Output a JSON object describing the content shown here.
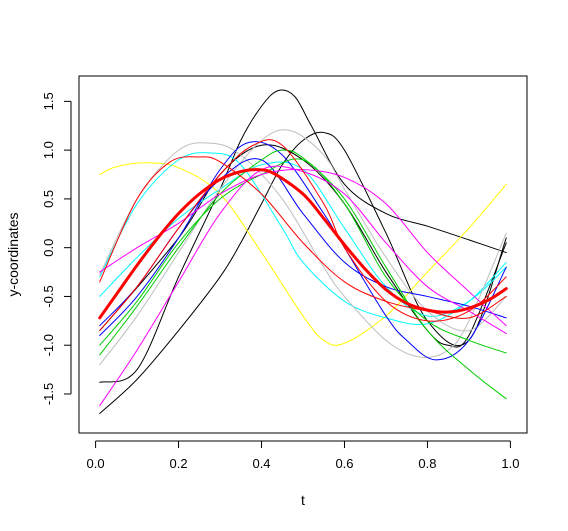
{
  "chart_data": {
    "type": "line",
    "title": "",
    "xlabel": "t",
    "ylabel": "y-coordinates",
    "xlim": [
      -0.04,
      1.04
    ],
    "ylim": [
      -1.9,
      1.76
    ],
    "xticks": [
      0.0,
      0.2,
      0.4,
      0.6,
      0.8,
      1.0
    ],
    "xtick_labels": [
      "0.0",
      "0.2",
      "0.4",
      "0.6",
      "0.8",
      "1.0"
    ],
    "yticks": [
      -1.5,
      -1.0,
      -0.5,
      0.0,
      0.5,
      1.0,
      1.5
    ],
    "ytick_labels": [
      "-1.5",
      "-1.0",
      "-0.5",
      "0.0",
      "0.5",
      "1.0",
      "1.5"
    ],
    "grid": false,
    "legend": "none",
    "series": [
      {
        "color": "#000000",
        "width": 1,
        "x": [
          0.01,
          0.1,
          0.2,
          0.3,
          0.35,
          0.4,
          0.45,
          0.5,
          0.55,
          0.6,
          0.7,
          0.8,
          0.9,
          0.99
        ],
        "y": [
          -1.7,
          -1.35,
          -0.85,
          -0.3,
          0.05,
          0.45,
          0.85,
          1.1,
          1.18,
          1.0,
          0.15,
          -0.75,
          -0.95,
          0.1
        ]
      },
      {
        "color": "#000000",
        "width": 1,
        "x": [
          0.01,
          0.1,
          0.2,
          0.3,
          0.35,
          0.4,
          0.44,
          0.48,
          0.52,
          0.6,
          0.7,
          0.8,
          0.9,
          0.99
        ],
        "y": [
          -1.38,
          -1.25,
          -0.3,
          0.6,
          1.1,
          1.45,
          1.61,
          1.55,
          1.25,
          0.65,
          0.35,
          0.22,
          0.08,
          -0.05
        ]
      },
      {
        "color": "#000000",
        "width": 1,
        "x": [
          0.01,
          0.2,
          0.3,
          0.4,
          0.5,
          0.6,
          0.7,
          0.8,
          0.85,
          0.9,
          0.99
        ],
        "y": [
          -0.85,
          0.1,
          0.75,
          1.05,
          0.9,
          0.45,
          -0.25,
          -0.85,
          -1.0,
          -0.9,
          0.05
        ]
      },
      {
        "color": "#ffff00",
        "width": 1,
        "x": [
          0.01,
          0.05,
          0.12,
          0.2,
          0.3,
          0.4,
          0.5,
          0.55,
          0.6,
          0.7,
          0.8,
          0.9,
          0.99
        ],
        "y": [
          0.75,
          0.83,
          0.87,
          0.82,
          0.55,
          -0.05,
          -0.7,
          -0.95,
          -0.98,
          -0.7,
          -0.25,
          0.2,
          0.65
        ]
      },
      {
        "color": "#00ffff",
        "width": 1,
        "x": [
          0.01,
          0.1,
          0.2,
          0.28,
          0.35,
          0.45,
          0.5,
          0.6,
          0.7,
          0.8,
          0.9,
          0.99
        ],
        "y": [
          -0.3,
          0.45,
          0.9,
          0.97,
          0.85,
          0.2,
          -0.15,
          -0.55,
          -0.72,
          -0.78,
          -0.55,
          -0.15
        ]
      },
      {
        "color": "#00ffff",
        "width": 1,
        "x": [
          0.01,
          0.1,
          0.2,
          0.3,
          0.4,
          0.5,
          0.6,
          0.7,
          0.8,
          0.9,
          0.99
        ],
        "y": [
          -0.5,
          -0.1,
          0.3,
          0.6,
          0.85,
          0.8,
          0.2,
          -0.4,
          -0.7,
          -0.55,
          -0.2
        ]
      },
      {
        "color": "#bebebe",
        "width": 1,
        "x": [
          0.01,
          0.1,
          0.2,
          0.28,
          0.35,
          0.45,
          0.55,
          0.6,
          0.7,
          0.78,
          0.85,
          0.9,
          0.99
        ],
        "y": [
          -0.28,
          0.5,
          1.0,
          1.07,
          0.95,
          0.5,
          -0.2,
          -0.5,
          -0.95,
          -1.12,
          -1.05,
          -0.75,
          0.15
        ]
      },
      {
        "color": "#bebebe",
        "width": 1,
        "x": [
          0.01,
          0.1,
          0.2,
          0.3,
          0.4,
          0.47,
          0.55,
          0.6,
          0.7,
          0.8,
          0.9,
          0.99
        ],
        "y": [
          -1.2,
          -0.7,
          -0.05,
          0.6,
          1.1,
          1.2,
          0.95,
          0.6,
          -0.1,
          -0.65,
          -0.85,
          -0.5
        ]
      },
      {
        "color": "#0000ff",
        "width": 1,
        "x": [
          0.01,
          0.1,
          0.2,
          0.3,
          0.37,
          0.45,
          0.55,
          0.6,
          0.7,
          0.75,
          0.82,
          0.9,
          0.99
        ],
        "y": [
          -0.9,
          -0.5,
          0.1,
          0.8,
          1.08,
          0.95,
          0.35,
          0.0,
          -0.7,
          -0.95,
          -1.15,
          -0.95,
          -0.2
        ]
      },
      {
        "color": "#0000ff",
        "width": 1,
        "x": [
          0.01,
          0.1,
          0.2,
          0.3,
          0.4,
          0.5,
          0.6,
          0.7,
          0.8,
          0.9,
          0.99
        ],
        "y": [
          -0.8,
          -0.4,
          0.2,
          0.7,
          0.9,
          0.35,
          -0.15,
          -0.4,
          -0.5,
          -0.6,
          -0.72
        ]
      },
      {
        "color": "#00cd00",
        "width": 1,
        "x": [
          0.01,
          0.1,
          0.2,
          0.3,
          0.4,
          0.45,
          0.5,
          0.6,
          0.7,
          0.8,
          0.9,
          0.99
        ],
        "y": [
          -1.1,
          -0.6,
          0.0,
          0.55,
          0.9,
          1.0,
          0.92,
          0.5,
          -0.2,
          -0.85,
          -1.25,
          -1.55
        ]
      },
      {
        "color": "#00cd00",
        "width": 1,
        "x": [
          0.01,
          0.1,
          0.2,
          0.3,
          0.4,
          0.5,
          0.6,
          0.7,
          0.8,
          0.9,
          0.99
        ],
        "y": [
          -1.0,
          -0.55,
          0.05,
          0.5,
          0.75,
          0.9,
          0.45,
          -0.3,
          -0.75,
          -0.95,
          -1.08
        ]
      },
      {
        "color": "#ff00ff",
        "width": 1,
        "x": [
          0.01,
          0.1,
          0.2,
          0.3,
          0.4,
          0.5,
          0.6,
          0.7,
          0.8,
          0.9,
          0.99
        ],
        "y": [
          -1.62,
          -1.05,
          -0.35,
          0.35,
          0.8,
          0.78,
          0.55,
          0.05,
          -0.4,
          -0.65,
          -0.88
        ]
      },
      {
        "color": "#ff00ff",
        "width": 1,
        "x": [
          0.01,
          0.1,
          0.2,
          0.3,
          0.4,
          0.5,
          0.6,
          0.7,
          0.8,
          0.9,
          0.99
        ],
        "y": [
          -0.25,
          0.0,
          0.25,
          0.55,
          0.75,
          0.8,
          0.72,
          0.45,
          -0.05,
          -0.45,
          -0.8
        ]
      },
      {
        "color": "#ff0000",
        "width": 1,
        "x": [
          0.01,
          0.1,
          0.18,
          0.25,
          0.3,
          0.4,
          0.5,
          0.6,
          0.7,
          0.8,
          0.9,
          0.99
        ],
        "y": [
          -0.35,
          0.5,
          0.88,
          0.93,
          0.88,
          0.55,
          0.05,
          -0.35,
          -0.55,
          -0.65,
          -0.72,
          -0.5
        ]
      },
      {
        "color": "#ff0000",
        "width": 1,
        "x": [
          0.01,
          0.1,
          0.2,
          0.3,
          0.38,
          0.45,
          0.55,
          0.6,
          0.7,
          0.8,
          0.9,
          0.99
        ],
        "y": [
          -0.85,
          -0.4,
          0.2,
          0.75,
          1.05,
          1.05,
          0.45,
          0.0,
          -0.55,
          -0.75,
          -0.65,
          -0.3
        ]
      },
      {
        "color": "#ff0000",
        "width": 3,
        "x": [
          0.01,
          0.05,
          0.1,
          0.15,
          0.2,
          0.25,
          0.3,
          0.35,
          0.39,
          0.43,
          0.5,
          0.55,
          0.6,
          0.65,
          0.7,
          0.75,
          0.8,
          0.85,
          0.9,
          0.95,
          0.99
        ],
        "y": [
          -0.72,
          -0.48,
          -0.18,
          0.1,
          0.35,
          0.55,
          0.7,
          0.78,
          0.8,
          0.76,
          0.55,
          0.3,
          0.03,
          -0.22,
          -0.43,
          -0.57,
          -0.64,
          -0.66,
          -0.62,
          -0.53,
          -0.42
        ]
      }
    ]
  }
}
